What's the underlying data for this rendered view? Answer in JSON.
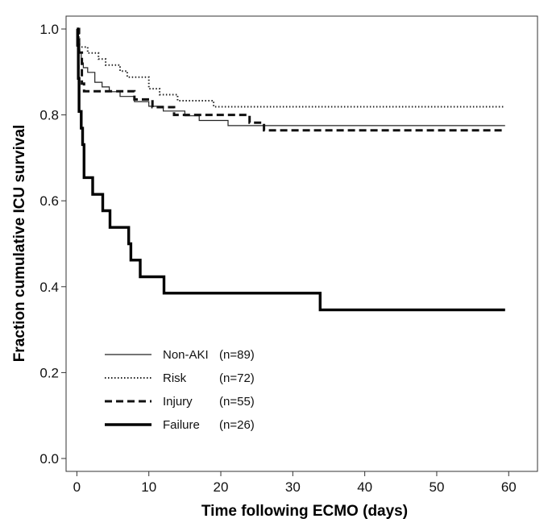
{
  "chart_data": {
    "type": "line",
    "subtype": "kaplan-meier step",
    "title": "",
    "xlabel": "Time following ECMO (days)",
    "ylabel": "Fraction cumulative ICU survival",
    "xlim": [
      -1.5,
      64
    ],
    "ylim": [
      -0.03,
      1.03
    ],
    "xticks": [
      0,
      10,
      20,
      30,
      40,
      50,
      60
    ],
    "xtick_labels": [
      "0",
      "10",
      "20",
      "30",
      "40",
      "50",
      "60"
    ],
    "yticks": [
      0.0,
      0.2,
      0.4,
      0.6,
      0.8,
      1.0
    ],
    "ytick_labels": [
      "0.0",
      "0.2",
      "0.4",
      "0.6",
      "0.8",
      "1.0"
    ],
    "grid": false,
    "legend_position": "bottom-left",
    "series": [
      {
        "name": "Non-AKI",
        "n_label": "(n=89)",
        "style": "solid-thin",
        "points": [
          [
            0,
            1.0
          ],
          [
            0.2,
            0.966
          ],
          [
            0.4,
            0.944
          ],
          [
            0.6,
            0.921
          ],
          [
            0.9,
            0.91
          ],
          [
            1.5,
            0.899
          ],
          [
            2.5,
            0.876
          ],
          [
            3.5,
            0.865
          ],
          [
            4.5,
            0.854
          ],
          [
            6,
            0.843
          ],
          [
            8,
            0.831
          ],
          [
            10,
            0.82
          ],
          [
            12,
            0.809
          ],
          [
            15,
            0.798
          ],
          [
            17,
            0.787
          ],
          [
            21,
            0.775
          ],
          [
            59.5,
            0.775
          ]
        ]
      },
      {
        "name": "Risk",
        "n_label": "(n=72)",
        "style": "dotted",
        "points": [
          [
            0,
            1.0
          ],
          [
            0.3,
            0.958
          ],
          [
            1.5,
            0.944
          ],
          [
            3,
            0.93
          ],
          [
            4,
            0.916
          ],
          [
            6,
            0.902
          ],
          [
            7,
            0.888
          ],
          [
            10,
            0.861
          ],
          [
            11.5,
            0.847
          ],
          [
            14,
            0.833
          ],
          [
            19,
            0.819
          ],
          [
            59.5,
            0.819
          ]
        ]
      },
      {
        "name": "Injury",
        "n_label": "(n=55)",
        "style": "dashed",
        "points": [
          [
            0,
            1.0
          ],
          [
            0.3,
            0.945
          ],
          [
            0.7,
            0.873
          ],
          [
            1,
            0.855
          ],
          [
            8,
            0.836
          ],
          [
            10.5,
            0.818
          ],
          [
            13.5,
            0.8
          ],
          [
            24,
            0.782
          ],
          [
            26,
            0.764
          ],
          [
            59.5,
            0.764
          ]
        ]
      },
      {
        "name": "Failure",
        "n_label": "(n=26)",
        "style": "solid-thick",
        "points": [
          [
            0,
            1.0
          ],
          [
            0.1,
            0.962
          ],
          [
            0.2,
            0.885
          ],
          [
            0.3,
            0.808
          ],
          [
            0.6,
            0.769
          ],
          [
            0.8,
            0.731
          ],
          [
            1,
            0.654
          ],
          [
            2.2,
            0.615
          ],
          [
            3.6,
            0.577
          ],
          [
            4.6,
            0.538
          ],
          [
            7.2,
            0.5
          ],
          [
            7.5,
            0.462
          ],
          [
            8.8,
            0.423
          ],
          [
            12.1,
            0.385
          ],
          [
            33.8,
            0.346
          ],
          [
            59.5,
            0.346
          ]
        ]
      }
    ]
  }
}
